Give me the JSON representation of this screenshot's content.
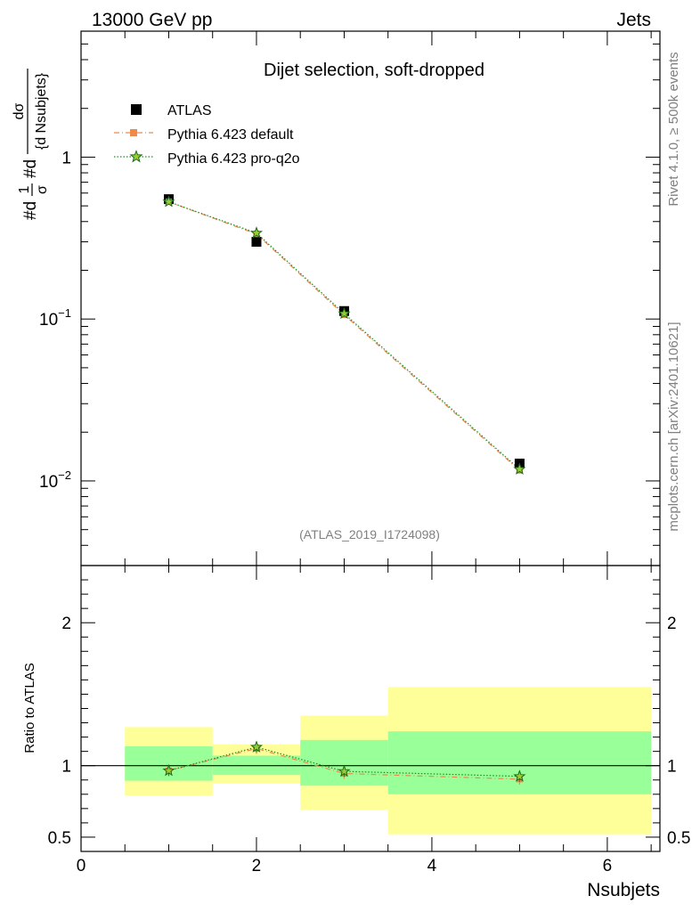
{
  "header": {
    "left": "13000 GeV pp",
    "right": "Jets"
  },
  "side_labels": {
    "rivet": "Rivet 4.1.0, ≥ 500k events",
    "mcplots": "mcplots.cern.ch [arXiv:2401.10621]"
  },
  "colors": {
    "atlas": "#000000",
    "default": "#ee8a4a",
    "proq2o": "#228b22",
    "band_yellow": "#ffff99",
    "band_green": "#99ff99"
  },
  "chart_data": [
    {
      "type": "scatter",
      "title": "Dijet selection, soft-dropped",
      "analysis_id": "(ATLAS_2019_I1724098)",
      "xlabel": "Nsubjets",
      "ylabel_parts": {
        "prefix": "#d",
        "frac1_num": "1",
        "frac1_den": "σ",
        "mid": "#d",
        "frac2_num": "dσ",
        "frac2_den": "{d Nsubjets}"
      },
      "yscale": "log",
      "xlim": [
        0,
        6.6
      ],
      "ylim": [
        0.003,
        6
      ],
      "yticks": [
        {
          "value": 1,
          "base": "1",
          "exp": ""
        },
        {
          "value": 0.1,
          "base": "10",
          "exp": "−1"
        },
        {
          "value": 0.01,
          "base": "10",
          "exp": "−2"
        }
      ],
      "legend": {
        "position": "top-left",
        "entries": [
          "ATLAS",
          "Pythia 6.423 default",
          "Pythia 6.423 pro-q2o"
        ]
      },
      "x": [
        1,
        2,
        3,
        5
      ],
      "series": [
        {
          "name": "ATLAS",
          "marker": "square",
          "values": [
            0.55,
            0.3,
            0.112,
            0.0128
          ]
        },
        {
          "name": "Pythia 6.423 default",
          "marker": "small-square",
          "line": "dash-dot",
          "values": [
            0.53,
            0.335,
            0.106,
            0.0116
          ]
        },
        {
          "name": "Pythia 6.423 pro-q2o",
          "marker": "star",
          "line": "dotted",
          "values": [
            0.53,
            0.34,
            0.108,
            0.0118
          ]
        }
      ]
    },
    {
      "type": "line",
      "ylabel": "Ratio to ATLAS",
      "xlabel": "Nsubjets",
      "xlim": [
        0,
        6.6
      ],
      "ylim": [
        0.4,
        2.4
      ],
      "xticks": [
        "0",
        "2",
        "4",
        "6"
      ],
      "yticks": [
        "0.5",
        "1",
        "2"
      ],
      "reference": 1,
      "bands": [
        {
          "x0": 0.5,
          "x1": 1.5,
          "yellow": [
            0.79,
            1.27
          ],
          "green": [
            0.895,
            1.135
          ]
        },
        {
          "x0": 1.5,
          "x1": 2.5,
          "yellow": [
            0.875,
            1.15
          ],
          "green": [
            0.935,
            1.07
          ]
        },
        {
          "x0": 2.5,
          "x1": 3.5,
          "yellow": [
            0.69,
            1.35
          ],
          "green": [
            0.86,
            1.18
          ]
        },
        {
          "x0": 3.5,
          "x1": 6.5,
          "yellow": [
            0.52,
            1.55
          ],
          "green": [
            0.8,
            1.24
          ]
        }
      ],
      "x": [
        1,
        2,
        3,
        5
      ],
      "series": [
        {
          "name": "Pythia 6.423 default",
          "values": [
            0.965,
            1.12,
            0.945,
            0.905
          ]
        },
        {
          "name": "Pythia 6.423 pro-q2o",
          "values": [
            0.965,
            1.13,
            0.96,
            0.925
          ]
        }
      ]
    }
  ]
}
